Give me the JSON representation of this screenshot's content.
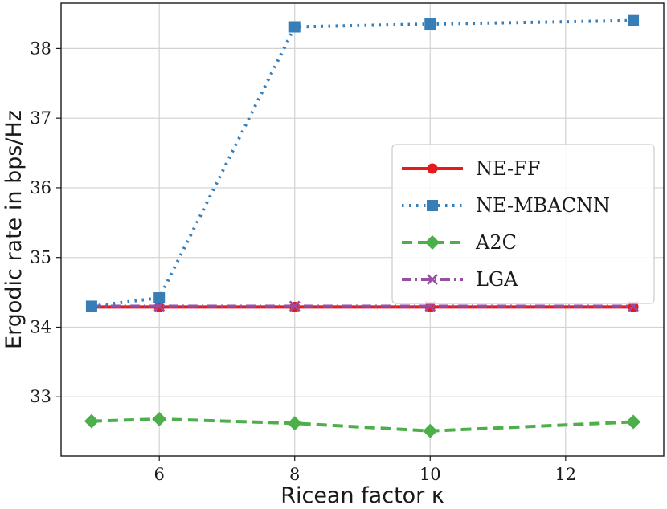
{
  "chart_data": {
    "type": "line",
    "xlabel": "Ricean factor κ",
    "ylabel": "Ergodic rate in bps/Hz",
    "xlim": [
      4.55,
      13.45
    ],
    "ylim": [
      32.15,
      38.65
    ],
    "xticks": [
      6,
      8,
      10,
      12
    ],
    "yticks": [
      33,
      34,
      35,
      36,
      37,
      38
    ],
    "grid": true,
    "legend_position": "center-right",
    "x": [
      5,
      6,
      8,
      10,
      13
    ],
    "series": [
      {
        "name": "NE-FF",
        "values": [
          34.29,
          34.29,
          34.29,
          34.29,
          34.29
        ],
        "color": "#e41a1c",
        "linestyle": "solid",
        "marker": "circle"
      },
      {
        "name": "NE-MBACNN",
        "values": [
          34.3,
          34.42,
          38.31,
          38.35,
          38.4
        ],
        "color": "#377eb8",
        "linestyle": "dotted",
        "marker": "square"
      },
      {
        "name": "A2C",
        "values": [
          32.65,
          32.68,
          32.62,
          32.51,
          32.64
        ],
        "color": "#4daf4a",
        "linestyle": "dashed",
        "marker": "diamond"
      },
      {
        "name": "LGA",
        "values": [
          34.3,
          34.3,
          34.3,
          34.3,
          34.3
        ],
        "color": "#984ea3",
        "linestyle": "dashdot",
        "marker": "x"
      }
    ]
  }
}
